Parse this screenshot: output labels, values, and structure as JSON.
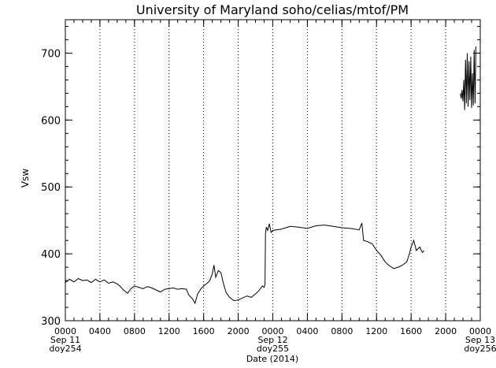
{
  "chart_data": {
    "type": "line",
    "title": "University of Maryland  soho/celias/mtof/PM",
    "ylabel": "Vsw",
    "xlabel": "Date (2014)",
    "ylim": [
      300,
      750
    ],
    "xlim": [
      0,
      48
    ],
    "grid": "vertical-dotted",
    "y_ticks": [
      {
        "value": 300,
        "label": "300"
      },
      {
        "value": 400,
        "label": "400"
      },
      {
        "value": 500,
        "label": "500"
      },
      {
        "value": 600,
        "label": "600"
      },
      {
        "value": 700,
        "label": "700"
      }
    ],
    "x_ticks": [
      {
        "value": 0,
        "label": "0000"
      },
      {
        "value": 4,
        "label": "0400"
      },
      {
        "value": 8,
        "label": "0800"
      },
      {
        "value": 12,
        "label": "1200"
      },
      {
        "value": 16,
        "label": "1600"
      },
      {
        "value": 20,
        "label": "2000"
      },
      {
        "value": 24,
        "label": "0000"
      },
      {
        "value": 28,
        "label": "0400"
      },
      {
        "value": 32,
        "label": "0800"
      },
      {
        "value": 36,
        "label": "1200"
      },
      {
        "value": 40,
        "label": "1600"
      },
      {
        "value": 44,
        "label": "2000"
      },
      {
        "value": 48,
        "label": "0000"
      }
    ],
    "day_labels": [
      {
        "value": 0,
        "date": "Sep 11",
        "doy": "doy254"
      },
      {
        "value": 24,
        "date": "Sep 12",
        "doy": "doy255"
      },
      {
        "value": 48,
        "date": "Sep 13",
        "doy": "doy256"
      }
    ],
    "series": [
      {
        "segments": [
          [
            [
              0,
              357
            ],
            [
              0.5,
              362
            ],
            [
              1,
              358
            ],
            [
              1.5,
              363
            ],
            [
              2,
              360
            ],
            [
              2.5,
              361
            ],
            [
              3,
              357
            ],
            [
              3.5,
              362
            ],
            [
              4,
              358
            ],
            [
              4.5,
              361
            ],
            [
              5,
              356
            ],
            [
              5.5,
              358
            ],
            [
              6,
              355
            ],
            [
              6.3,
              352
            ],
            [
              6.8,
              345
            ],
            [
              7.2,
              341
            ],
            [
              7.6,
              348
            ],
            [
              8,
              352
            ],
            [
              8.5,
              350
            ],
            [
              9,
              348
            ],
            [
              9.5,
              351
            ],
            [
              10,
              349
            ],
            [
              10.5,
              346
            ],
            [
              11,
              343
            ],
            [
              11.5,
              347
            ],
            [
              12,
              348
            ],
            [
              12.5,
              349
            ],
            [
              13,
              347
            ],
            [
              13.5,
              348
            ],
            [
              14,
              347
            ],
            [
              14.3,
              338
            ],
            [
              14.7,
              333
            ],
            [
              15,
              326
            ],
            [
              15.3,
              340
            ],
            [
              15.7,
              348
            ],
            [
              16,
              352
            ],
            [
              16.4,
              356
            ],
            [
              16.7,
              360
            ],
            [
              17.0,
              370
            ],
            [
              17.2,
              383
            ],
            [
              17.4,
              365
            ],
            [
              17.7,
              375
            ],
            [
              18.0,
              372
            ],
            [
              18.3,
              355
            ],
            [
              18.6,
              342
            ],
            [
              19,
              335
            ],
            [
              19.5,
              330
            ],
            [
              20,
              331
            ],
            [
              20.5,
              334
            ],
            [
              21,
              337
            ],
            [
              21.5,
              335
            ],
            [
              22,
              340
            ],
            [
              22.4,
              345
            ],
            [
              22.8,
              352
            ],
            [
              23.0,
              350
            ],
            [
              23.1,
              355
            ],
            [
              23.15,
              430
            ],
            [
              23.25,
              440
            ],
            [
              23.4,
              435
            ],
            [
              23.6,
              445
            ],
            [
              23.8,
              432
            ],
            [
              24,
              435
            ],
            [
              25,
              437
            ],
            [
              26,
              441
            ],
            [
              27,
              440
            ],
            [
              28,
              438
            ],
            [
              29,
              442
            ],
            [
              30,
              443
            ],
            [
              31,
              441
            ],
            [
              32,
              439
            ],
            [
              33,
              438
            ],
            [
              34,
              436
            ],
            [
              34.3,
              446
            ],
            [
              34.5,
              420
            ],
            [
              35,
              418
            ],
            [
              35.5,
              415
            ],
            [
              36,
              405
            ],
            [
              36.5,
              398
            ],
            [
              37,
              388
            ],
            [
              37.5,
              382
            ],
            [
              38,
              378
            ],
            [
              38.5,
              380
            ],
            [
              39,
              383
            ],
            [
              39.5,
              388
            ],
            [
              39.8,
              400
            ],
            [
              40,
              410
            ],
            [
              40.3,
              420
            ],
            [
              40.6,
              405
            ],
            [
              41,
              410
            ],
            [
              41.3,
              402
            ],
            [
              41.5,
              405
            ]
          ]
        ]
      },
      {
        "segments": [
          [
            [
              45.7,
              640
            ],
            [
              45.8,
              632
            ],
            [
              45.9,
              645
            ],
            [
              46.0,
              628
            ],
            [
              46.1,
              660
            ],
            [
              46.2,
              615
            ],
            [
              46.3,
              690
            ],
            [
              46.4,
              625
            ],
            [
              46.5,
              700
            ],
            [
              46.6,
              620
            ],
            [
              46.7,
              688
            ],
            [
              46.8,
              630
            ],
            [
              46.9,
              695
            ],
            [
              47.0,
              618
            ],
            [
              47.1,
              670
            ],
            [
              47.2,
              622
            ],
            [
              47.3,
              705
            ],
            [
              47.4,
              625
            ],
            [
              47.5,
              710
            ]
          ]
        ]
      }
    ]
  }
}
